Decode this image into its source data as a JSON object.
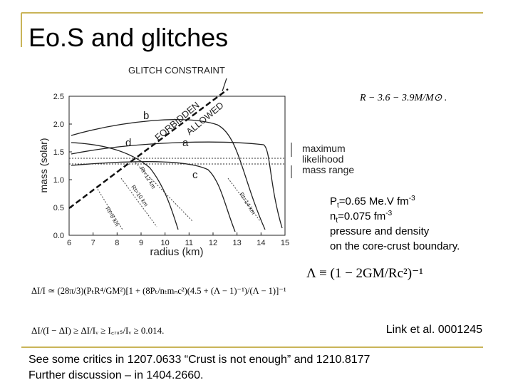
{
  "header": {
    "title": "Eo.S and glitches"
  },
  "figure": {
    "title": "GLITCH CONSTRAINT",
    "x_label": "radius (km)",
    "y_label": "mass (solar)",
    "xticks": [
      "6",
      "7",
      "8",
      "9",
      "10",
      "11",
      "12",
      "13",
      "14",
      "15"
    ],
    "yticks": [
      "2.5",
      "2.0",
      "1.5",
      "1.0",
      "0.5",
      "0.0"
    ],
    "curve_labels": [
      "a",
      "b",
      "c",
      "d"
    ],
    "region_labels": [
      "FORBIDDEN",
      "ALLOWED"
    ],
    "radius_labels": [
      "Rt=12 km",
      "Rt=10 km",
      "Rt=8 km",
      "Rt=14 km"
    ],
    "range_label": [
      "maximum",
      "likelihood",
      "mass range"
    ]
  },
  "equations": {
    "radius_relation": "R − 3.6 − 3.9M/M⊙ .",
    "lambda": "Λ ≡ (1 − 2GM/Rc²)⁻¹",
    "moment_ratio": "ΔI/I ≃ (28π/3)(PₜR⁴/GM²)[1 + (8Pₜ/nₜmₙc²)(4.5 + (Λ − 1)⁻¹)/(Λ − 1)]⁻¹",
    "glitch_bound": "ΔI/(I − ΔI) ≥ ΔI/Iᵥ ≥ I꜀ᵣᵤₛ/Iᵥ ≥ 0.014."
  },
  "notes": {
    "pressure": [
      "P",
      "t",
      "=0.65 Me.V fm",
      "-3"
    ],
    "density": [
      "n",
      "t",
      "=0.075 fm",
      "-3"
    ],
    "line3": "pressure and density",
    "line4": "on the core-crust boundary."
  },
  "citation": "Link et al. 0001245",
  "footer": [
    "See some critics in 1207.0633 “Crust is not enough” and 1210.8177",
    "Further discussion – in 1404.2660."
  ]
}
